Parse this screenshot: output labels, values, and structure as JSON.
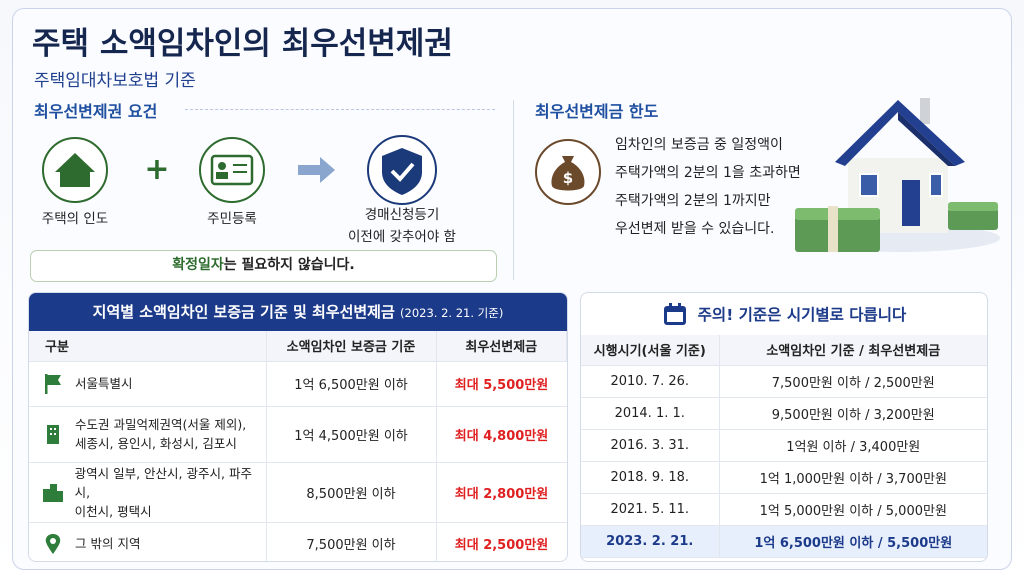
{
  "header": {
    "title": "주택 소액임차인의 최우선변제권",
    "subtitle": "주택임대차보호법 기준"
  },
  "requirements": {
    "title": "최우선변제권 요건",
    "items": [
      [
        "주택의 인도"
      ],
      [
        "주민등록"
      ],
      [
        "경매신청등기",
        "이전에 갖추어야 함"
      ]
    ],
    "note": [
      "확정일자",
      "는 필요하지 않습니다."
    ]
  },
  "limit": {
    "title": "최우선변제금 한도",
    "lines": [
      "임차인의 보증금 중 일정액이",
      "주택가액의 2분의 1을 초과하면",
      "주택가액의 2분의 1까지만",
      "우선변제 받을 수 있습니다."
    ]
  },
  "regional": {
    "title": "지역별 소액임차인 보증금 기준 및 최우선변제금",
    "date": "(2023. 2. 21. 기준)",
    "headers": [
      "구분",
      "소액임차인 보증금 기준",
      "최우선변제금"
    ],
    "rows": [
      [
        [
          "서울특별시"
        ],
        "1억 6,500만원 이하",
        "최대 5,500만원"
      ],
      [
        [
          "수도권 과밀억제권역(서울 제외),",
          "세종시, 용인시, 화성시, 김포시"
        ],
        "1억 4,500만원 이하",
        "최대 4,800만원"
      ],
      [
        [
          "광역시 일부, 안산시, 광주시, 파주시,",
          "이천시, 평택시"
        ],
        "8,500만원 이하",
        "최대 2,800만원"
      ],
      [
        [
          "그 밖의 지역"
        ],
        "7,500만원 이하",
        "최대 2,500만원"
      ]
    ]
  },
  "history": {
    "title": "주의! 기준은 시기별로 다릅니다",
    "headers": [
      "시행시기(서울 기준)",
      "소액임차인 기준 / 최우선변제금"
    ],
    "rows": [
      [
        "2010. 7. 26.",
        "7,500만원 이하 / 2,500만원"
      ],
      [
        "2014. 1. 1.",
        "9,500만원 이하 / 3,200만원"
      ],
      [
        "2016. 3. 31.",
        "1억원 이하 / 3,400만원"
      ],
      [
        "2018. 9. 18.",
        "1억 1,000만원 이하 / 3,700만원"
      ],
      [
        "2021. 5. 11.",
        "1억 5,000만원 이하 / 5,000만원"
      ],
      [
        "2023. 2. 21.",
        "1억 6,500만원 이하 / 5,500만원"
      ]
    ]
  }
}
